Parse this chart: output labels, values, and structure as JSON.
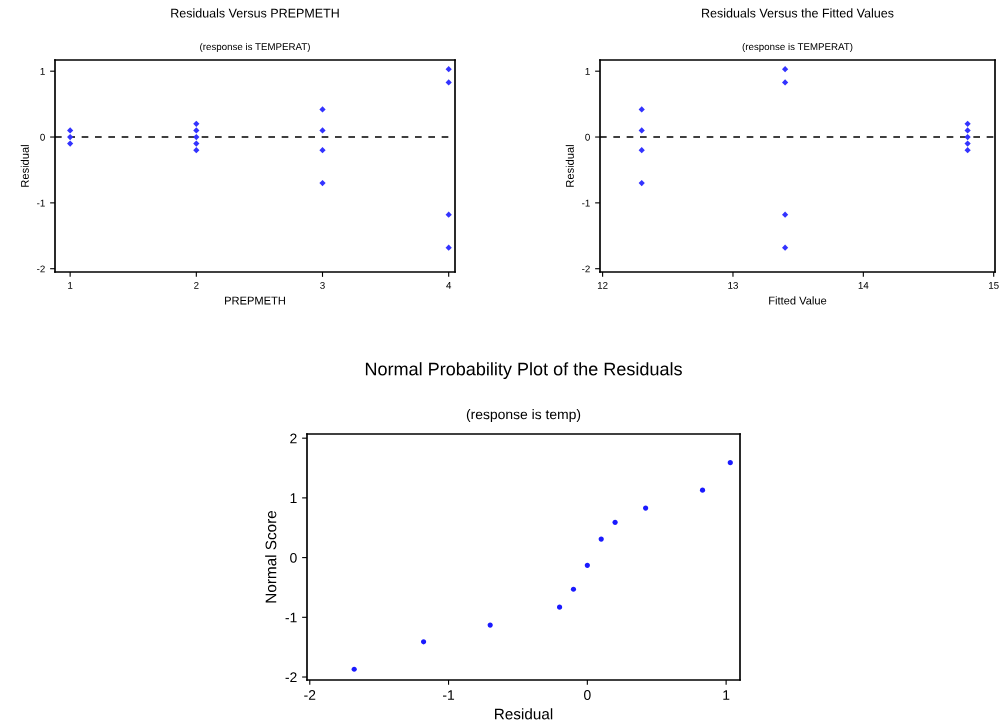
{
  "chart_data": [
    {
      "type": "scatter",
      "title": "Residuals Versus PREPMETH",
      "subtitle": "(response is TEMPERAT)",
      "xlabel": "PREPMETH",
      "ylabel": "Residual",
      "marker": "diamond",
      "grid": false,
      "xlim": [
        0.88,
        4.05
      ],
      "xticks": [
        1,
        2,
        3,
        4
      ],
      "ylim": [
        -2.05,
        1.17
      ],
      "yticks": [
        -2,
        -1,
        0,
        1
      ],
      "ref_lines": [
        {
          "axis": "y",
          "value": 0,
          "color": "#000000",
          "line_style": "dashed"
        }
      ],
      "series": [
        {
          "color": "#3333ff",
          "x": [
            1,
            1,
            1,
            2,
            2,
            2,
            2,
            2,
            3,
            3,
            3,
            3,
            4,
            4,
            4,
            4
          ],
          "values": [
            0.1,
            0,
            -0.1,
            0.2,
            0.1,
            0,
            -0.1,
            -0.2,
            0.42,
            0.1,
            -0.2,
            -0.7,
            1.03,
            0.83,
            -1.18,
            -1.68
          ]
        }
      ]
    },
    {
      "type": "scatter",
      "title": "Residuals Versus the Fitted Values",
      "subtitle": "(response is TEMPERAT)",
      "xlabel": "Fitted Value",
      "ylabel": "Residual",
      "marker": "diamond",
      "grid": false,
      "xlim": [
        11.98,
        15.01
      ],
      "xticks": [
        12,
        13,
        14,
        15
      ],
      "ylim": [
        -2.05,
        1.17
      ],
      "yticks": [
        -2,
        -1,
        0,
        1
      ],
      "ref_lines": [
        {
          "axis": "y",
          "value": 0,
          "color": "#000000",
          "line_style": "dashed"
        }
      ],
      "series": [
        {
          "color": "#3333ff",
          "x": [
            12.3,
            12.3,
            12.3,
            12.3,
            13.4,
            13.4,
            13.4,
            13.4,
            14.8,
            14.8,
            14.8,
            14.8,
            14.8
          ],
          "values": [
            0.42,
            0.1,
            -0.2,
            -0.7,
            1.03,
            0.83,
            -1.18,
            -1.68,
            0.2,
            0.1,
            0,
            -0.1,
            -0.2
          ]
        }
      ]
    },
    {
      "type": "scatter",
      "title": "Normal Probability Plot of the Residuals",
      "subtitle": "(response is temp)",
      "xlabel": "Residual",
      "ylabel": "Normal Score",
      "marker": "circle",
      "grid": false,
      "xlim": [
        -2.02,
        1.1
      ],
      "xticks": [
        -2,
        -1,
        0,
        1
      ],
      "ylim": [
        -2.05,
        2.07
      ],
      "yticks": [
        -2,
        -1,
        0,
        1,
        2
      ],
      "series": [
        {
          "color": "#1a1aff",
          "x": [
            -1.68,
            -1.18,
            -0.7,
            -0.2,
            -0.1,
            0,
            0.1,
            0.2,
            0.42,
            0.83,
            1.03
          ],
          "values": [
            -1.87,
            -1.41,
            -1.13,
            -0.83,
            -0.53,
            -0.13,
            0.31,
            0.59,
            0.83,
            1.13,
            1.59
          ]
        }
      ]
    }
  ]
}
